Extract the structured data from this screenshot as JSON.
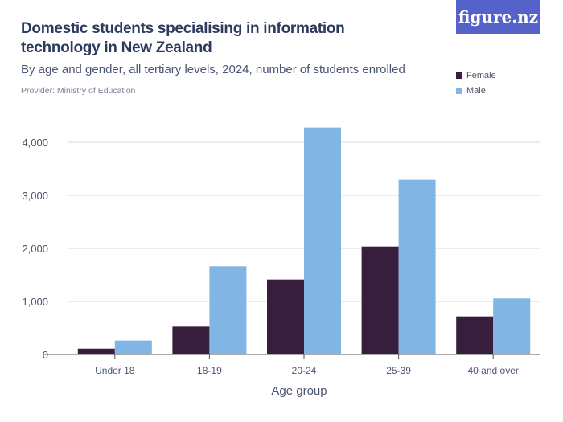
{
  "title": "Domestic students specialising in information technology in New Zealand",
  "subtitle": "By age and gender, all tertiary levels, 2024, number of students enrolled",
  "provider": "Provider: Ministry of Education",
  "logo": "figure.nz",
  "colors": {
    "female": "#361e3c",
    "male": "#80b5e4",
    "logo_bg": "#5462c9"
  },
  "chart_data": {
    "type": "bar",
    "title": "Domestic students specialising in information technology in New Zealand",
    "xlabel": "Age group",
    "ylabel": "",
    "categories": [
      "Under 18",
      "18-19",
      "20-24",
      "25-39",
      "40 and over"
    ],
    "series": [
      {
        "name": "Female",
        "values": [
          110,
          525,
          1414,
          2035,
          717
        ]
      },
      {
        "name": "Male",
        "values": [
          263,
          1662,
          4278,
          3293,
          1056
        ]
      }
    ],
    "ylim": [
      0,
      4300
    ],
    "yticks": [
      0,
      1000,
      2000,
      3000,
      4000
    ],
    "ytick_labels": [
      "0",
      "1,000",
      "2,000",
      "3,000",
      "4,000"
    ],
    "grid": true,
    "legend": "top-right"
  }
}
